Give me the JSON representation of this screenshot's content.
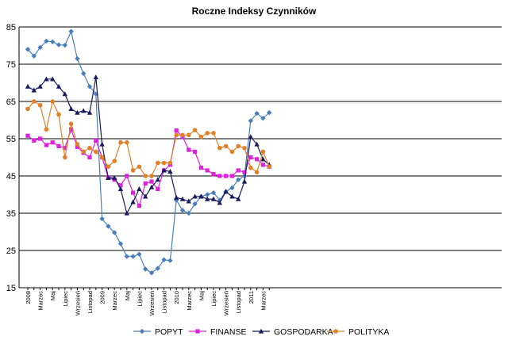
{
  "chart_data": {
    "type": "line",
    "title": "Roczne Indeksy Czynników",
    "ylim": [
      15,
      85
    ],
    "yticks": [
      15,
      25,
      35,
      45,
      55,
      65,
      75,
      85
    ],
    "grid": true,
    "legend_position": "bottom",
    "x_tick_labels": [
      "2008",
      "",
      "Marzec",
      "",
      "Maj",
      "",
      "Lipiec",
      "",
      "Wrzesień",
      "",
      "Listopad",
      "",
      "2009",
      "",
      "Marzec",
      "",
      "Maj",
      "",
      "Lipiec",
      "",
      "Wrzesień",
      "",
      "Listopad",
      "",
      "2010",
      "",
      "Marzec",
      "",
      "Maj",
      "",
      "Lipiec",
      "",
      "Wrzesień",
      "",
      "Listopad",
      "",
      "2011",
      "",
      "Marzec",
      ""
    ],
    "x_count": 40,
    "series": [
      {
        "name": "POPYT",
        "color": "#4a7ebb",
        "marker": "diamond",
        "values": [
          79,
          77.2,
          79.5,
          81.2,
          81,
          80.2,
          80.1,
          83.8,
          76.5,
          72.5,
          69,
          67,
          33.5,
          31.5,
          29.8,
          26.8,
          23.4,
          23.4,
          24,
          20,
          19,
          20.2,
          22.5,
          22.3,
          38.5,
          35.8,
          35,
          37.5,
          39.5,
          40,
          40.5,
          38.5,
          40.8,
          41.8,
          44,
          45,
          59.8,
          61.8,
          60.5,
          62
        ]
      },
      {
        "name": "FINANSE",
        "color": "#dd22dd",
        "marker": "square",
        "values": [
          55.8,
          54.5,
          55,
          53.3,
          54,
          53,
          52.5,
          57.5,
          52.8,
          51.2,
          50,
          54.5,
          50,
          44.5,
          44,
          42.5,
          45,
          40.5,
          37,
          43,
          43.5,
          41.5,
          46.5,
          48,
          57.2,
          55.5,
          52,
          51.5,
          47.2,
          46.5,
          45.5,
          45,
          45,
          45,
          46.5,
          46,
          50,
          49.5,
          48,
          47.5
        ]
      },
      {
        "name": "GOSPODARKA",
        "color": "#1a1a5e",
        "marker": "triangle",
        "values": [
          69,
          68,
          69,
          71,
          71,
          69,
          67,
          63,
          62,
          62.5,
          62,
          71.5,
          53.5,
          44.5,
          44.5,
          41.5,
          35,
          38,
          41.5,
          39.5,
          42,
          44,
          46.5,
          46.2,
          39.2,
          38.8,
          38.2,
          39.5,
          39.5,
          38.8,
          38.8,
          37.8,
          40.8,
          39.5,
          38.8,
          43.5,
          55.5,
          53.5,
          49.5,
          48
        ]
      },
      {
        "name": "POLITYKA",
        "color": "#e0812a",
        "marker": "circle",
        "values": [
          63,
          65,
          64,
          57.5,
          65,
          61.5,
          50,
          59,
          53.5,
          51.5,
          52.5,
          51.5,
          50,
          47.5,
          49,
          54,
          54,
          46.5,
          47.5,
          45,
          45,
          48.5,
          48.5,
          48.5,
          56,
          56,
          56,
          57.3,
          55.5,
          56.5,
          56.5,
          52.5,
          53,
          51.5,
          53,
          52.5,
          47.2,
          46,
          51.5,
          47.5
        ]
      }
    ]
  }
}
